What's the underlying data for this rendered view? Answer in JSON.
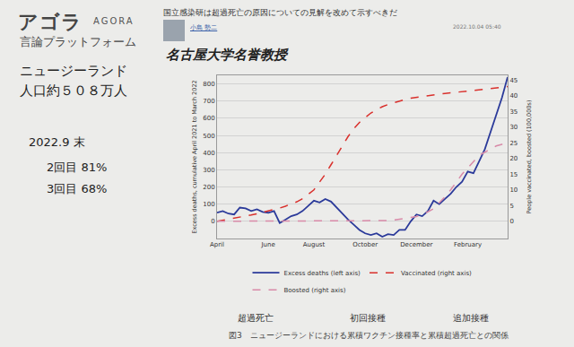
{
  "header": {
    "logo": "アゴラ",
    "logo_en": "AGORA",
    "logo_sub": "言論プラットフォーム",
    "article_title": "国立感染研は超過死亡の原因についての見解を改めて示すべきだ",
    "author": "小島 勢二",
    "date": "2022.10.04 05:40",
    "affiliation": "名古屋大学名誉教授"
  },
  "sidebar": [
    "ニュージーランド",
    "人口約５０８万人",
    "2022.9 末",
    "2回目 81%",
    "3回目 68%"
  ],
  "caption": "図3　ニュージーランドにおける累積ワクチン接種率と累積超過死亡との関係",
  "chart_data": {
    "type": "line",
    "annotations": [
      "超過死亡",
      "初回接種",
      "追加接種"
    ],
    "y_label": "Excess deaths, cumulative April 2021 to March 2022",
    "y2_label": "People vaccinated, boosted (100,000s)",
    "categories": [
      "April",
      null,
      null,
      null,
      null,
      null,
      null,
      null,
      null,
      "June",
      null,
      null,
      null,
      null,
      null,
      null,
      null,
      "August",
      null,
      null,
      null,
      null,
      null,
      null,
      null,
      null,
      "October",
      null,
      null,
      null,
      null,
      null,
      null,
      null,
      null,
      "December",
      null,
      null,
      null,
      null,
      null,
      null,
      null,
      null,
      "February",
      null,
      null,
      null,
      null,
      null,
      null,
      null
    ],
    "ylim": [
      -100,
      850
    ],
    "yticks": [
      0,
      100,
      200,
      300,
      400,
      500,
      600,
      700,
      800
    ],
    "y2lim": [
      -5.5,
      46.5
    ],
    "y2ticks": [
      0,
      5,
      10,
      15,
      20,
      25,
      30,
      35,
      40,
      45
    ],
    "grid": true,
    "legend": "bottom",
    "series": [
      {
        "name": "Excess deaths (left axis)",
        "color": "#2b3a9a",
        "line_style": "solid",
        "axis": "y",
        "values": [
          50,
          60,
          45,
          40,
          80,
          75,
          60,
          70,
          55,
          50,
          60,
          -10,
          10,
          30,
          40,
          60,
          90,
          120,
          110,
          130,
          115,
          80,
          40,
          10,
          -20,
          -50,
          -70,
          -80,
          -70,
          -90,
          -75,
          -80,
          -50,
          -50,
          0,
          40,
          30,
          60,
          120,
          100,
          130,
          160,
          200,
          230,
          290,
          280,
          350,
          420,
          520,
          620,
          720,
          840
        ]
      },
      {
        "name": "Vaccinated (right axis)",
        "color": "#d9302c",
        "line_style": "dash",
        "axis": "y2",
        "values": [
          0,
          0.3,
          0.6,
          1,
          1.3,
          1.7,
          2,
          2.4,
          2.8,
          3.2,
          3.7,
          4.2,
          4.8,
          5.4,
          6.2,
          7.2,
          8.5,
          10,
          12.5,
          15,
          18,
          21,
          24,
          27,
          29.5,
          31.5,
          33,
          34.5,
          35.5,
          36.5,
          37.2,
          37.8,
          38.3,
          38.8,
          39.2,
          39.5,
          39.8,
          40,
          40.3,
          40.5,
          40.7,
          40.9,
          41.1,
          41.3,
          41.5,
          41.7,
          41.9,
          42.1,
          42.3,
          42.5,
          42.7,
          42.9
        ]
      },
      {
        "name": "Boosted (right axis)",
        "color": "#d88aa8",
        "line_style": "dash",
        "axis": "y2",
        "values": [
          0,
          0,
          0,
          0,
          0,
          0,
          0,
          0,
          0,
          0,
          0,
          0,
          0,
          0,
          0,
          0,
          0,
          0,
          0,
          0,
          0,
          0,
          0,
          0,
          0,
          0,
          0,
          0,
          0,
          0,
          0.2,
          0.4,
          0.6,
          0.9,
          1.2,
          1.5,
          2.2,
          3,
          4,
          5.8,
          7.8,
          10,
          12.5,
          15,
          17,
          19,
          21,
          22,
          23,
          24,
          24.5,
          25
        ]
      }
    ]
  }
}
